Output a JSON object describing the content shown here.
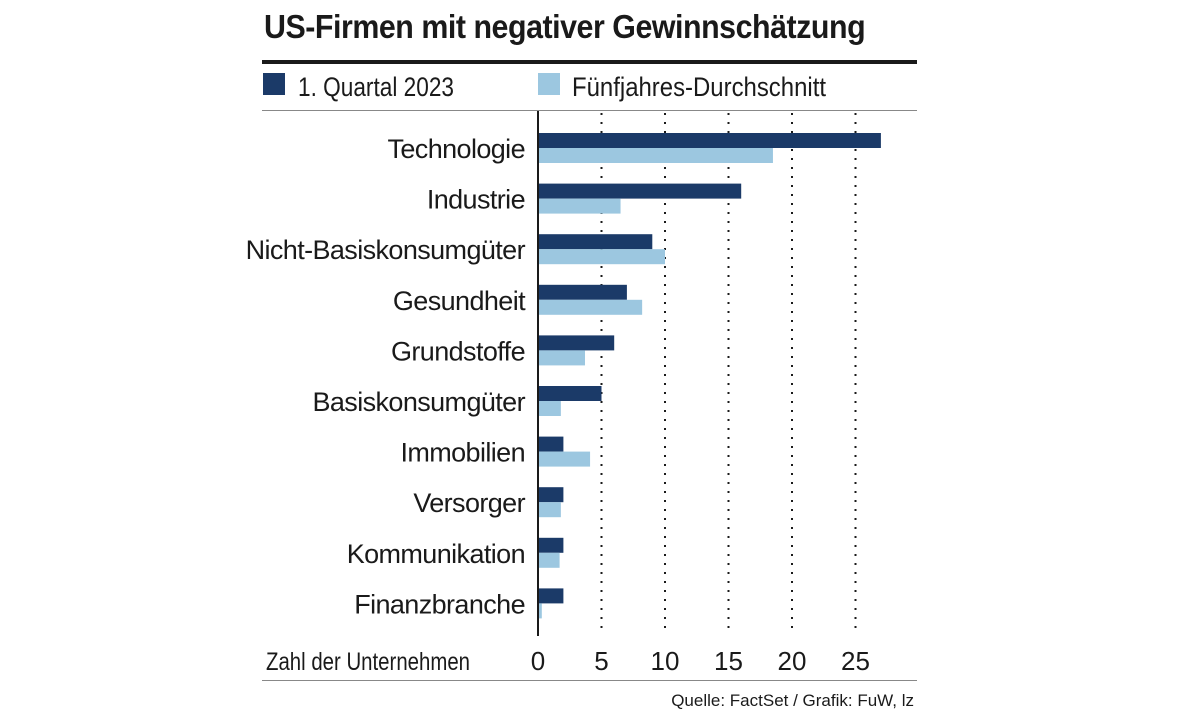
{
  "chart_data": {
    "type": "bar",
    "orientation": "horizontal",
    "title": "US-Firmen mit negativer Gewinnschätzung",
    "categories": [
      "Technologie",
      "Industrie",
      "Nicht-Basiskonsumgüter",
      "Gesundheit",
      "Grundstoffe",
      "Basiskonsumgüter",
      "Immobilien",
      "Versorger",
      "Kommunikation",
      "Finanzbranche"
    ],
    "series": [
      {
        "name": "1. Quartal 2023",
        "color": "#1b3a68",
        "values": [
          27,
          16,
          9,
          7,
          6,
          5,
          2,
          2,
          2,
          2
        ]
      },
      {
        "name": "Fünfjahres-Durchschnitt",
        "color": "#9cc7e0",
        "values": [
          18.5,
          6.5,
          10,
          8.2,
          3.7,
          1.8,
          4.1,
          1.8,
          1.7,
          0.3
        ]
      }
    ],
    "xlabel": "Zahl der Unternehmen",
    "xlim": [
      0,
      28
    ],
    "xticks": [
      0,
      5,
      10,
      15,
      20,
      25
    ],
    "grid": "dotted-vertical",
    "legend_position": "top-left",
    "source": "Quelle: FactSet / Grafik: FuW, lz"
  }
}
